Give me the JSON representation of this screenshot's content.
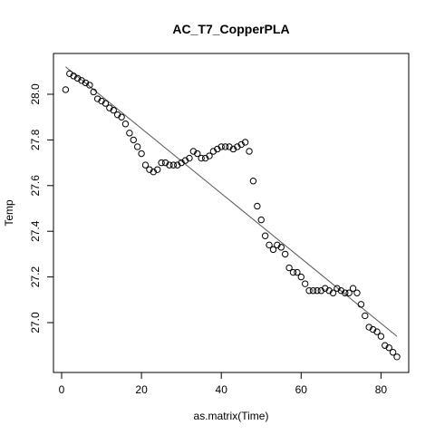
{
  "chart_data": {
    "type": "scatter",
    "title": "AC_T7_CopperPLA",
    "xlabel": "as.matrix(Time)",
    "ylabel": "Temp",
    "xlim": [
      0,
      84
    ],
    "ylim": [
      26.85,
      28.19
    ],
    "x_ticks": [
      0,
      20,
      40,
      60,
      80
    ],
    "y_ticks": [
      27.0,
      27.2,
      27.4,
      27.6,
      27.8,
      28.0
    ],
    "x_tick_labels": [
      "0",
      "20",
      "40",
      "60",
      "80"
    ],
    "y_tick_labels": [
      "27.0",
      "27.2",
      "27.4",
      "27.6",
      "27.8",
      "28.0"
    ],
    "grid": false,
    "legend": "none",
    "x": [
      1,
      2,
      3,
      4,
      5,
      6,
      7,
      8,
      9,
      10,
      11,
      12,
      13,
      14,
      15,
      16,
      17,
      18,
      19,
      20,
      21,
      22,
      23,
      24,
      25,
      26,
      27,
      28,
      29,
      30,
      31,
      32,
      33,
      34,
      35,
      36,
      37,
      38,
      39,
      40,
      41,
      42,
      43,
      44,
      45,
      46,
      47,
      48,
      49,
      50,
      51,
      52,
      53,
      54,
      55,
      56,
      57,
      58,
      59,
      60,
      61,
      62,
      63,
      64,
      65,
      66,
      67,
      68,
      69,
      70,
      71,
      72,
      73,
      74,
      75,
      76,
      77,
      78,
      79,
      80,
      81,
      82,
      83,
      84
    ],
    "y": [
      28.02,
      28.09,
      28.08,
      28.07,
      28.06,
      28.05,
      28.04,
      28.01,
      27.98,
      27.97,
      27.96,
      27.94,
      27.93,
      27.91,
      27.9,
      27.87,
      27.83,
      27.8,
      27.77,
      27.74,
      27.69,
      27.67,
      27.66,
      27.67,
      27.7,
      27.7,
      27.69,
      27.69,
      27.69,
      27.7,
      27.71,
      27.72,
      27.75,
      27.74,
      27.72,
      27.72,
      27.73,
      27.75,
      27.76,
      27.77,
      27.77,
      27.77,
      27.76,
      27.77,
      27.78,
      27.79,
      27.75,
      27.62,
      27.51,
      27.45,
      27.38,
      27.34,
      27.32,
      27.34,
      27.33,
      27.3,
      27.24,
      27.22,
      27.22,
      27.2,
      27.17,
      27.14,
      27.14,
      27.14,
      27.14,
      27.15,
      27.14,
      27.13,
      27.15,
      27.14,
      27.13,
      27.13,
      27.15,
      27.13,
      27.08,
      27.03,
      26.98,
      26.97,
      26.96,
      26.94,
      26.9,
      26.89,
      26.87,
      26.85
    ],
    "fit_line": {
      "x": [
        1,
        84
      ],
      "y": [
        28.12,
        26.94
      ]
    }
  }
}
